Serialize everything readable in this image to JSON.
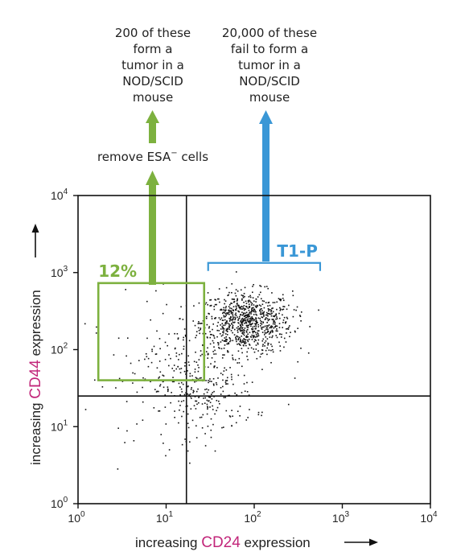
{
  "chart_data": {
    "type": "scatter",
    "title": "",
    "xlabel": {
      "prefix": "increasing ",
      "marker": "CD24",
      "suffix": " expression"
    },
    "ylabel": {
      "prefix": "increasing ",
      "marker": "CD44",
      "suffix": " expression"
    },
    "x_scale": "log",
    "y_scale": "log",
    "xlim": [
      1,
      10000
    ],
    "ylim": [
      1,
      10000
    ],
    "grid": false,
    "x_ticks": [
      {
        "base": "10",
        "exp": "0"
      },
      {
        "base": "10",
        "exp": "1"
      },
      {
        "base": "10",
        "exp": "2"
      },
      {
        "base": "10",
        "exp": "3"
      },
      {
        "base": "10",
        "exp": "4"
      }
    ],
    "y_ticks": [
      {
        "base": "10",
        "exp": "0"
      },
      {
        "base": "10",
        "exp": "1"
      },
      {
        "base": "10",
        "exp": "2"
      },
      {
        "base": "10",
        "exp": "3"
      },
      {
        "base": "10",
        "exp": "4"
      }
    ],
    "gate_x": 17,
    "gate_y": 25,
    "green_gate": {
      "label": "12%",
      "x_range": [
        1.7,
        27
      ],
      "y_range": [
        40,
        730
      ],
      "color": "#7db13f"
    },
    "blue_gate": {
      "label": "T1-P",
      "x_range": [
        30,
        560
      ],
      "y_at": 1000,
      "color": "#3a97d6"
    },
    "annotations": {
      "remove": {
        "prefix": "remove ESA",
        "sup": "−",
        "suffix": " cells"
      },
      "green_text": [
        "200 of these",
        "form a",
        "tumor in a",
        "NOD/SCID",
        "mouse"
      ],
      "blue_text": [
        "20,000 of these",
        "fail to form a",
        "tumor in a",
        "NOD/SCID",
        "mouse"
      ]
    },
    "series": [
      {
        "cluster": "main",
        "count": 820,
        "center": [
          80,
          230
        ],
        "spread_log": [
          0.26,
          0.2
        ],
        "color": "#111111"
      },
      {
        "cluster": "tail",
        "count": 260,
        "center": [
          25,
          30
        ],
        "spread_log": [
          0.3,
          0.3
        ],
        "color": "#111111"
      },
      {
        "cluster": "scatter",
        "count": 120,
        "center": [
          12,
          60
        ],
        "spread_log": [
          0.5,
          0.45
        ],
        "color": "#111111"
      }
    ]
  }
}
